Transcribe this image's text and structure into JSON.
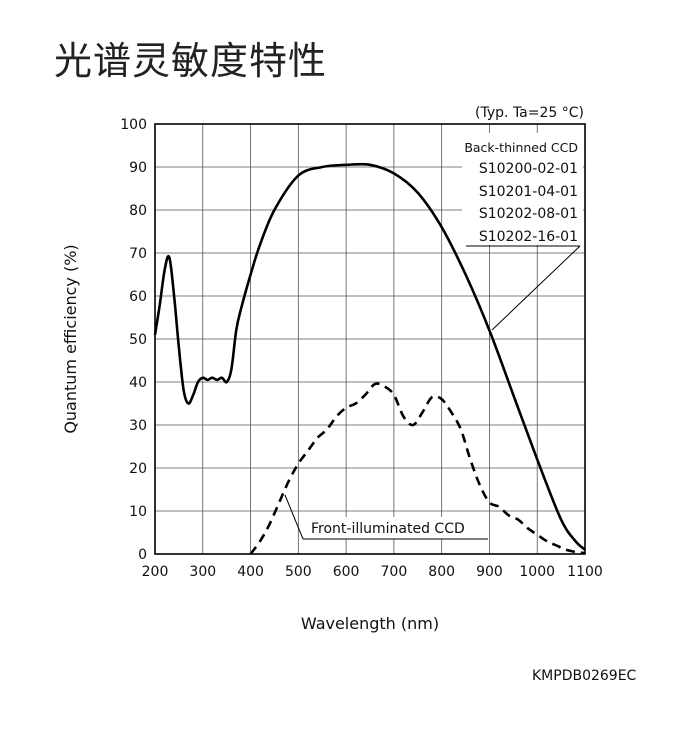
{
  "page": {
    "title": "光谱灵敏度特性",
    "document_code": "KMPDB0269EC"
  },
  "chart_data": {
    "type": "line",
    "title": "",
    "condition_note": "(Typ. Ta=25 °C)",
    "xlabel": "Wavelength (nm)",
    "ylabel": "Quantum efficiency (%)",
    "xlim": [
      200,
      1100
    ],
    "ylim": [
      0,
      100
    ],
    "xticks": [
      200,
      300,
      400,
      500,
      600,
      700,
      800,
      900,
      1000,
      1100
    ],
    "yticks": [
      0,
      10,
      20,
      30,
      40,
      50,
      60,
      70,
      80,
      90,
      100
    ],
    "grid": true,
    "legend_position": "top-right",
    "series": [
      {
        "name": "Back-thinned CCD",
        "style": "solid",
        "color": "#000000",
        "x": [
          200,
          210,
          220,
          230,
          240,
          250,
          260,
          270,
          280,
          290,
          300,
          310,
          320,
          330,
          340,
          350,
          360,
          370,
          380,
          400,
          420,
          450,
          500,
          550,
          600,
          650,
          700,
          750,
          800,
          850,
          900,
          950,
          1000,
          1050,
          1080,
          1100
        ],
        "y": [
          51,
          58,
          66,
          69,
          60,
          48,
          38,
          35,
          37,
          40,
          41,
          40.5,
          41,
          40.5,
          41,
          40,
          43,
          52,
          57,
          65,
          72,
          80,
          88,
          90,
          90.5,
          90.5,
          88.5,
          84,
          76,
          65,
          52,
          37,
          22,
          8,
          3,
          1
        ]
      },
      {
        "name": "Front-illuminated CCD",
        "style": "dashed",
        "color": "#000000",
        "x": [
          400,
          420,
          440,
          460,
          480,
          500,
          520,
          540,
          560,
          580,
          600,
          620,
          640,
          660,
          680,
          700,
          720,
          740,
          760,
          780,
          800,
          820,
          840,
          860,
          880,
          900,
          920,
          940,
          960,
          980,
          1000,
          1020,
          1040,
          1060,
          1080,
          1100
        ],
        "y": [
          0,
          3,
          7,
          12,
          17,
          21,
          24,
          27,
          29,
          32,
          34,
          35,
          37,
          39.5,
          39,
          37,
          32,
          30,
          33,
          36.5,
          36,
          33,
          29,
          22,
          16,
          12,
          11,
          9,
          8,
          6,
          4.5,
          3,
          2,
          1,
          0.5,
          0.2
        ]
      }
    ],
    "annotations": {
      "back_thinned_models": [
        "S10200-02-01",
        "S10201-04-01",
        "S10202-08-01",
        "S10202-16-01"
      ],
      "front_label": "Front-illuminated CCD"
    }
  }
}
